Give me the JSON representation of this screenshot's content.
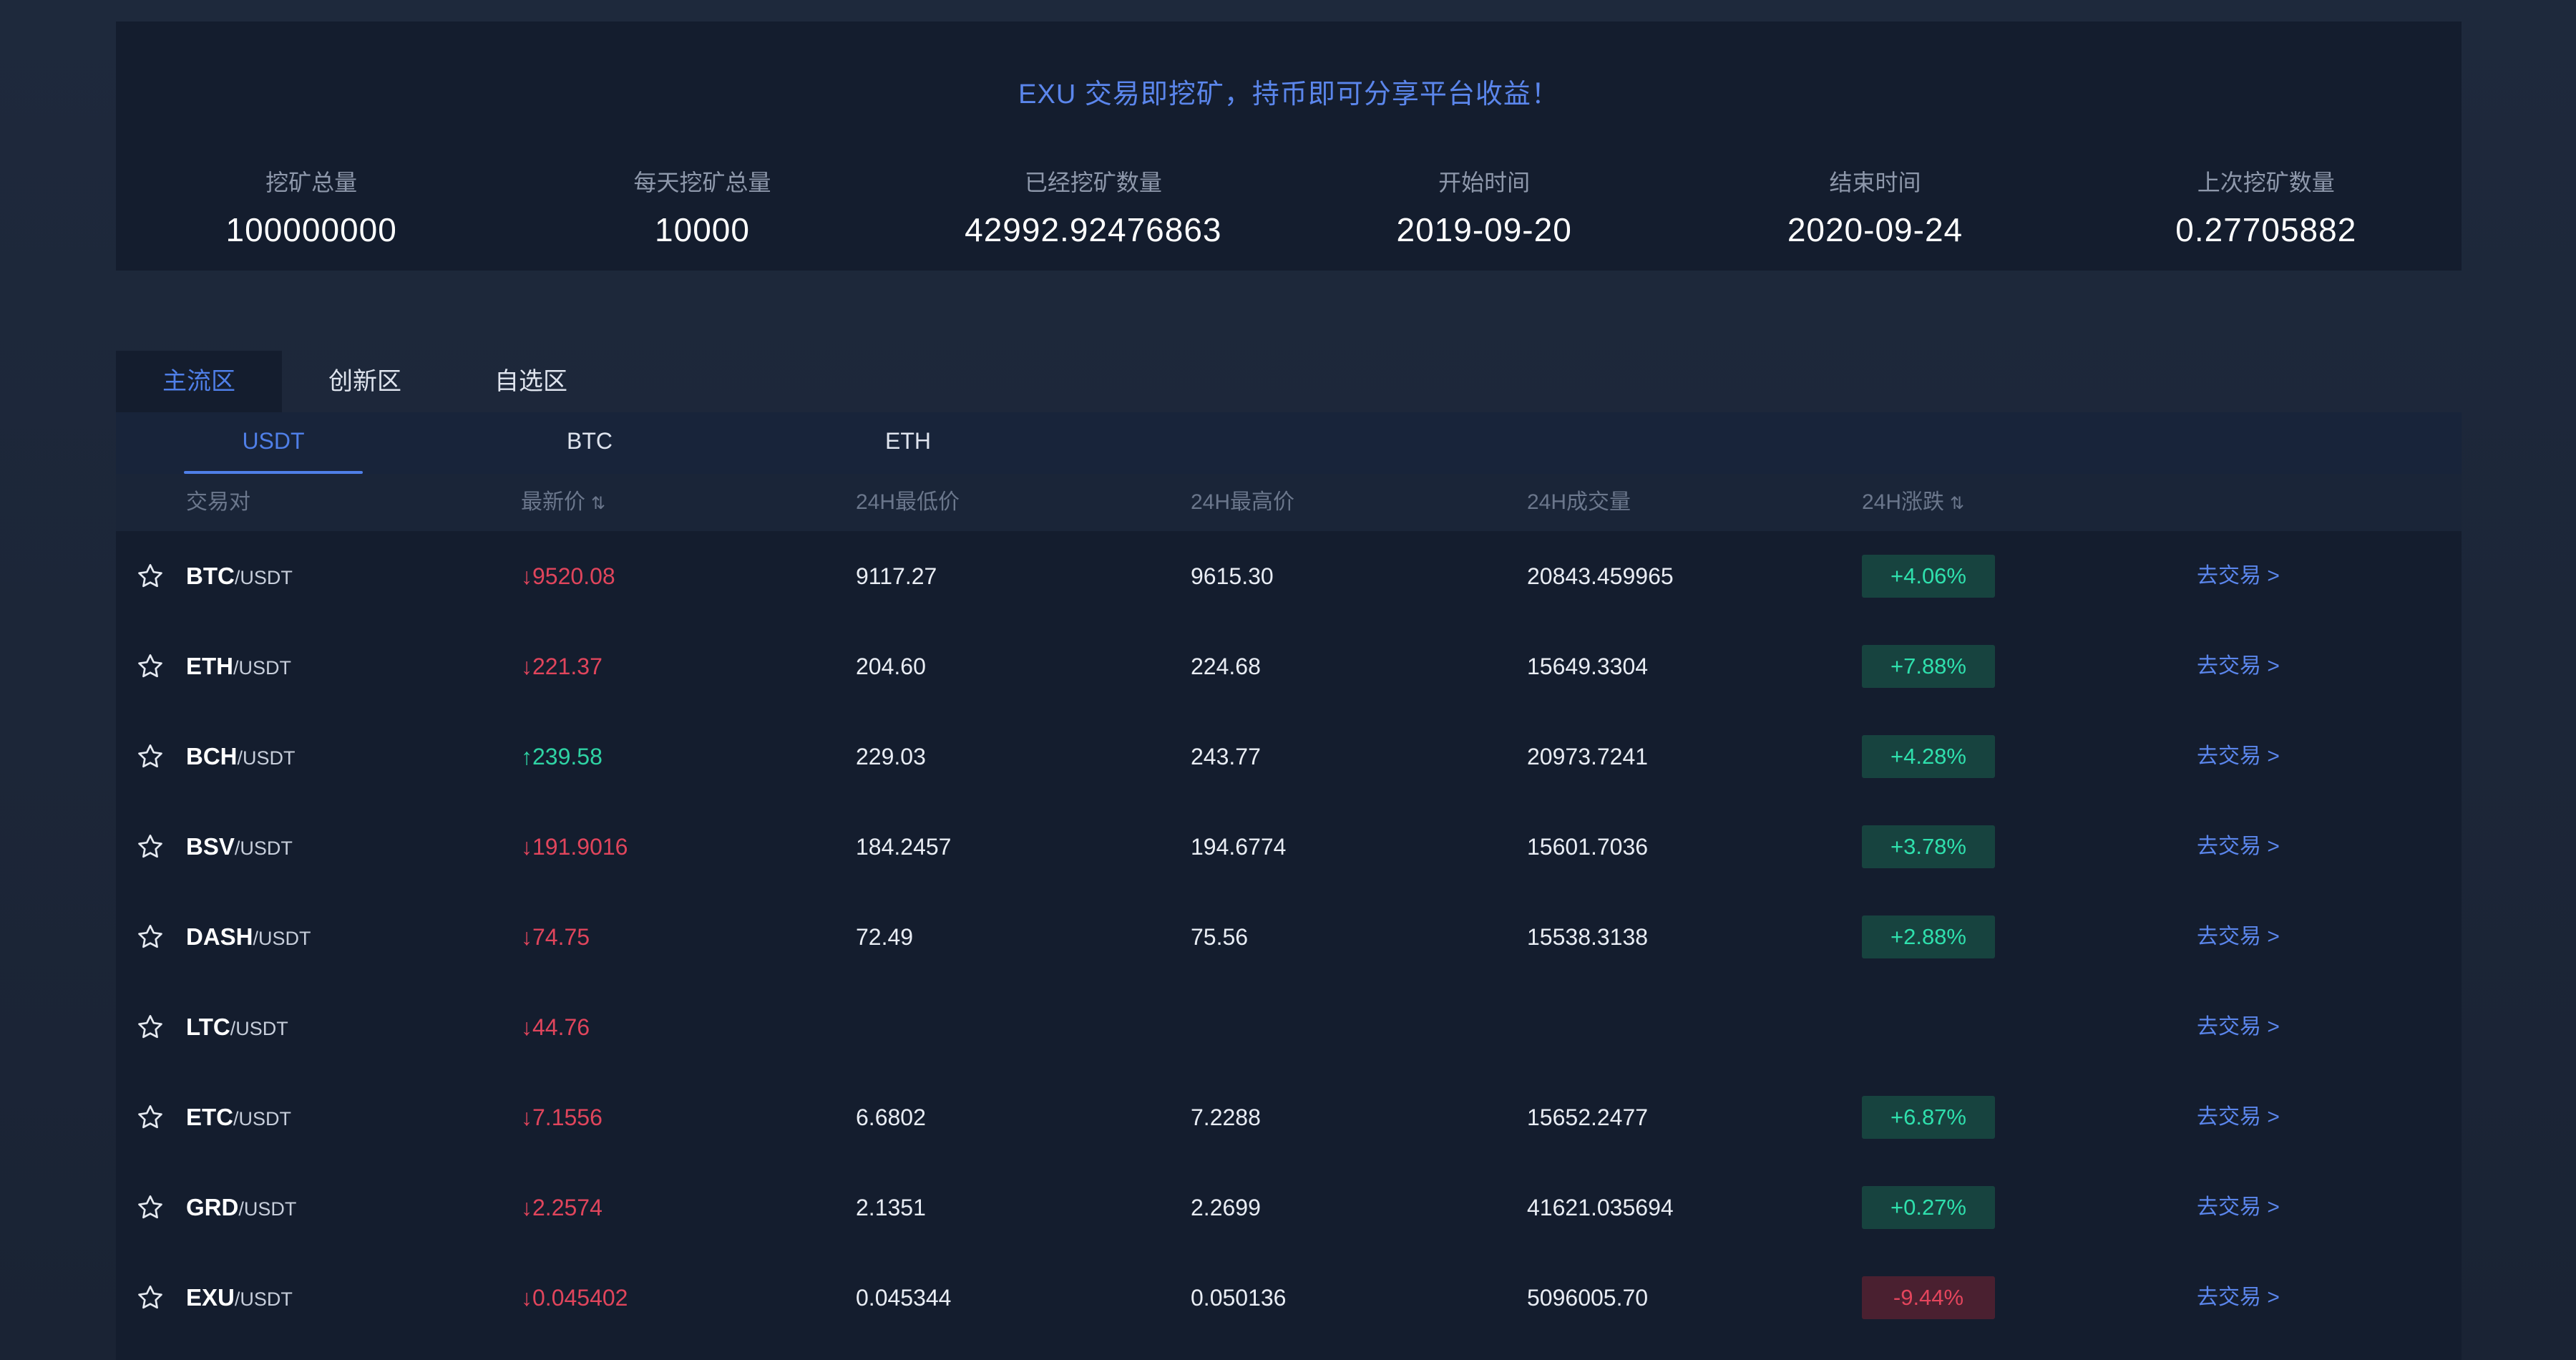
{
  "mining": {
    "title": "EXU 交易即挖矿，持币即可分享平台收益！",
    "stats": [
      {
        "label": "挖矿总量",
        "value": "100000000"
      },
      {
        "label": "每天挖矿总量",
        "value": "10000"
      },
      {
        "label": "已经挖矿数量",
        "value": "42992.92476863"
      },
      {
        "label": "开始时间",
        "value": "2019-09-20"
      },
      {
        "label": "结束时间",
        "value": "2020-09-24"
      },
      {
        "label": "上次挖矿数量",
        "value": "0.27705882"
      }
    ]
  },
  "zone_tabs": [
    "主流区",
    "创新区",
    "自选区"
  ],
  "quote_tabs": [
    "USDT",
    "BTC",
    "ETH"
  ],
  "columns": [
    "交易对",
    "最新价",
    "24H最低价",
    "24H最高价",
    "24H成交量",
    "24H涨跌",
    ""
  ],
  "sort_icon": "⇅",
  "trade_label": "去交易 >",
  "icons": {
    "star": "star-icon"
  },
  "colors": {
    "accent": "#4f7fe8",
    "up": "#2fd3a4",
    "down": "#e0455c",
    "panel": "#141d2e"
  },
  "rows": [
    {
      "base": "BTC",
      "quote": "/USDT",
      "price": "↓9520.08",
      "dir": "down",
      "low": "9117.27",
      "high": "9615.30",
      "volume": "20843.459965",
      "change": "+4.06%",
      "change_dir": "up"
    },
    {
      "base": "ETH",
      "quote": "/USDT",
      "price": "↓221.37",
      "dir": "down",
      "low": "204.60",
      "high": "224.68",
      "volume": "15649.3304",
      "change": "+7.88%",
      "change_dir": "up"
    },
    {
      "base": "BCH",
      "quote": "/USDT",
      "price": "↑239.58",
      "dir": "up",
      "low": "229.03",
      "high": "243.77",
      "volume": "20973.7241",
      "change": "+4.28%",
      "change_dir": "up"
    },
    {
      "base": "BSV",
      "quote": "/USDT",
      "price": "↓191.9016",
      "dir": "down",
      "low": "184.2457",
      "high": "194.6774",
      "volume": "15601.7036",
      "change": "+3.78%",
      "change_dir": "up"
    },
    {
      "base": "DASH",
      "quote": "/USDT",
      "price": "↓74.75",
      "dir": "down",
      "low": "72.49",
      "high": "75.56",
      "volume": "15538.3138",
      "change": "+2.88%",
      "change_dir": "up"
    },
    {
      "base": "LTC",
      "quote": "/USDT",
      "price": "↓44.76",
      "dir": "down",
      "low": "",
      "high": "",
      "volume": "",
      "change": "",
      "change_dir": "up"
    },
    {
      "base": "ETC",
      "quote": "/USDT",
      "price": "↓7.1556",
      "dir": "down",
      "low": "6.6802",
      "high": "7.2288",
      "volume": "15652.2477",
      "change": "+6.87%",
      "change_dir": "up"
    },
    {
      "base": "GRD",
      "quote": "/USDT",
      "price": "↓2.2574",
      "dir": "down",
      "low": "2.1351",
      "high": "2.2699",
      "volume": "41621.035694",
      "change": "+0.27%",
      "change_dir": "up"
    },
    {
      "base": "EXU",
      "quote": "/USDT",
      "price": "↓0.045402",
      "dir": "down",
      "low": "0.045344",
      "high": "0.050136",
      "volume": "5096005.70",
      "change": "-9.44%",
      "change_dir": "down"
    }
  ]
}
